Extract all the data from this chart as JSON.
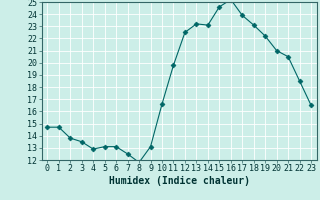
{
  "x": [
    0,
    1,
    2,
    3,
    4,
    5,
    6,
    7,
    8,
    9,
    10,
    11,
    12,
    13,
    14,
    15,
    16,
    17,
    18,
    19,
    20,
    21,
    22,
    23
  ],
  "y": [
    14.7,
    14.7,
    13.8,
    13.5,
    12.9,
    13.1,
    13.1,
    12.5,
    11.8,
    13.1,
    16.6,
    19.8,
    22.5,
    23.2,
    23.1,
    24.6,
    25.2,
    23.9,
    23.1,
    22.2,
    21.0,
    20.5,
    18.5,
    16.5
  ],
  "xlabel": "Humidex (Indice chaleur)",
  "ylim": [
    12,
    25
  ],
  "xlim": [
    -0.5,
    23.5
  ],
  "yticks": [
    12,
    13,
    14,
    15,
    16,
    17,
    18,
    19,
    20,
    21,
    22,
    23,
    24,
    25
  ],
  "xticks": [
    0,
    1,
    2,
    3,
    4,
    5,
    6,
    7,
    8,
    9,
    10,
    11,
    12,
    13,
    14,
    15,
    16,
    17,
    18,
    19,
    20,
    21,
    22,
    23
  ],
  "line_color": "#006666",
  "marker": "D",
  "marker_size": 2.5,
  "bg_color": "#cceee8",
  "grid_color": "#ffffff",
  "axis_label_fontsize": 7,
  "tick_fontsize": 6
}
